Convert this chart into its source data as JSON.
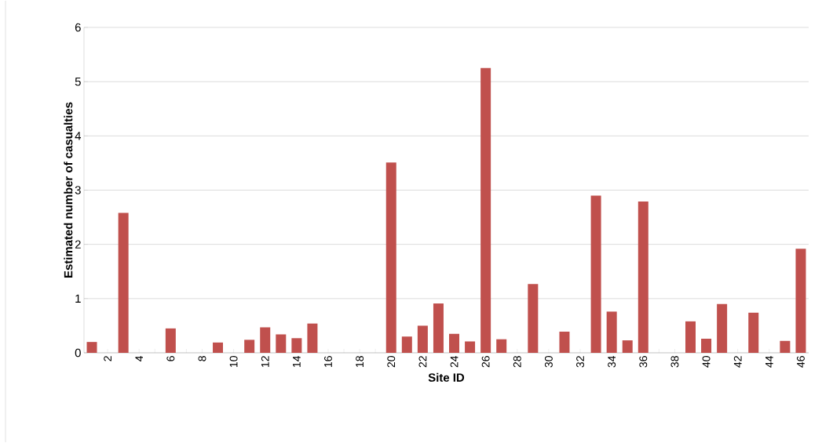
{
  "chart_data": {
    "type": "bar",
    "xlabel": "Site ID",
    "ylabel": "Estimated number of casualties",
    "categories": [
      null,
      "2",
      null,
      "4",
      null,
      "6",
      null,
      "8",
      null,
      "10",
      null,
      "12",
      null,
      "14",
      null,
      "16",
      null,
      "18",
      null,
      "20",
      null,
      "22",
      null,
      "24",
      null,
      "26",
      null,
      "28",
      null,
      "30",
      null,
      "32",
      null,
      "34",
      null,
      "36",
      null,
      "38",
      null,
      "40",
      null,
      "42",
      null,
      "44",
      null,
      "46"
    ],
    "values": [
      0.2,
      0,
      2.58,
      0,
      0,
      0.45,
      0,
      0,
      0.19,
      0,
      0.24,
      0.47,
      0.34,
      0.27,
      0.54,
      0,
      0,
      0,
      0,
      3.51,
      0.3,
      0.5,
      0.91,
      0.35,
      0.21,
      5.25,
      0.25,
      0,
      1.27,
      0,
      0.39,
      0,
      2.9,
      0.76,
      0.23,
      2.79,
      0,
      0,
      0.58,
      0.26,
      0.9,
      0,
      0.74,
      0,
      0.22,
      1.92
    ],
    "color": "#c0504d",
    "ylim": [
      0,
      6
    ],
    "yticks": [
      0,
      1,
      2,
      3,
      4,
      5,
      6
    ],
    "grid": "y"
  }
}
